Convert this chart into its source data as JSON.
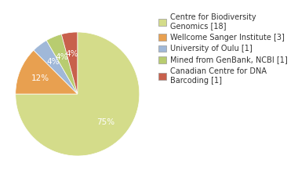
{
  "labels": [
    "Centre for Biodiversity\nGenomics [18]",
    "Wellcome Sanger Institute [3]",
    "University of Oulu [1]",
    "Mined from GenBank, NCBI [1]",
    "Canadian Centre for DNA\nBarcoding [1]"
  ],
  "values": [
    18,
    3,
    1,
    1,
    1
  ],
  "colors": [
    "#d4dc8a",
    "#e8a050",
    "#a0b8d8",
    "#b8cc70",
    "#c8604c"
  ],
  "startangle": 90,
  "figsize": [
    3.8,
    2.4
  ],
  "dpi": 100,
  "background_color": "#ffffff",
  "text_color": "#333333",
  "legend_fontsize": 7.0,
  "autopct_fontsize": 7.5
}
